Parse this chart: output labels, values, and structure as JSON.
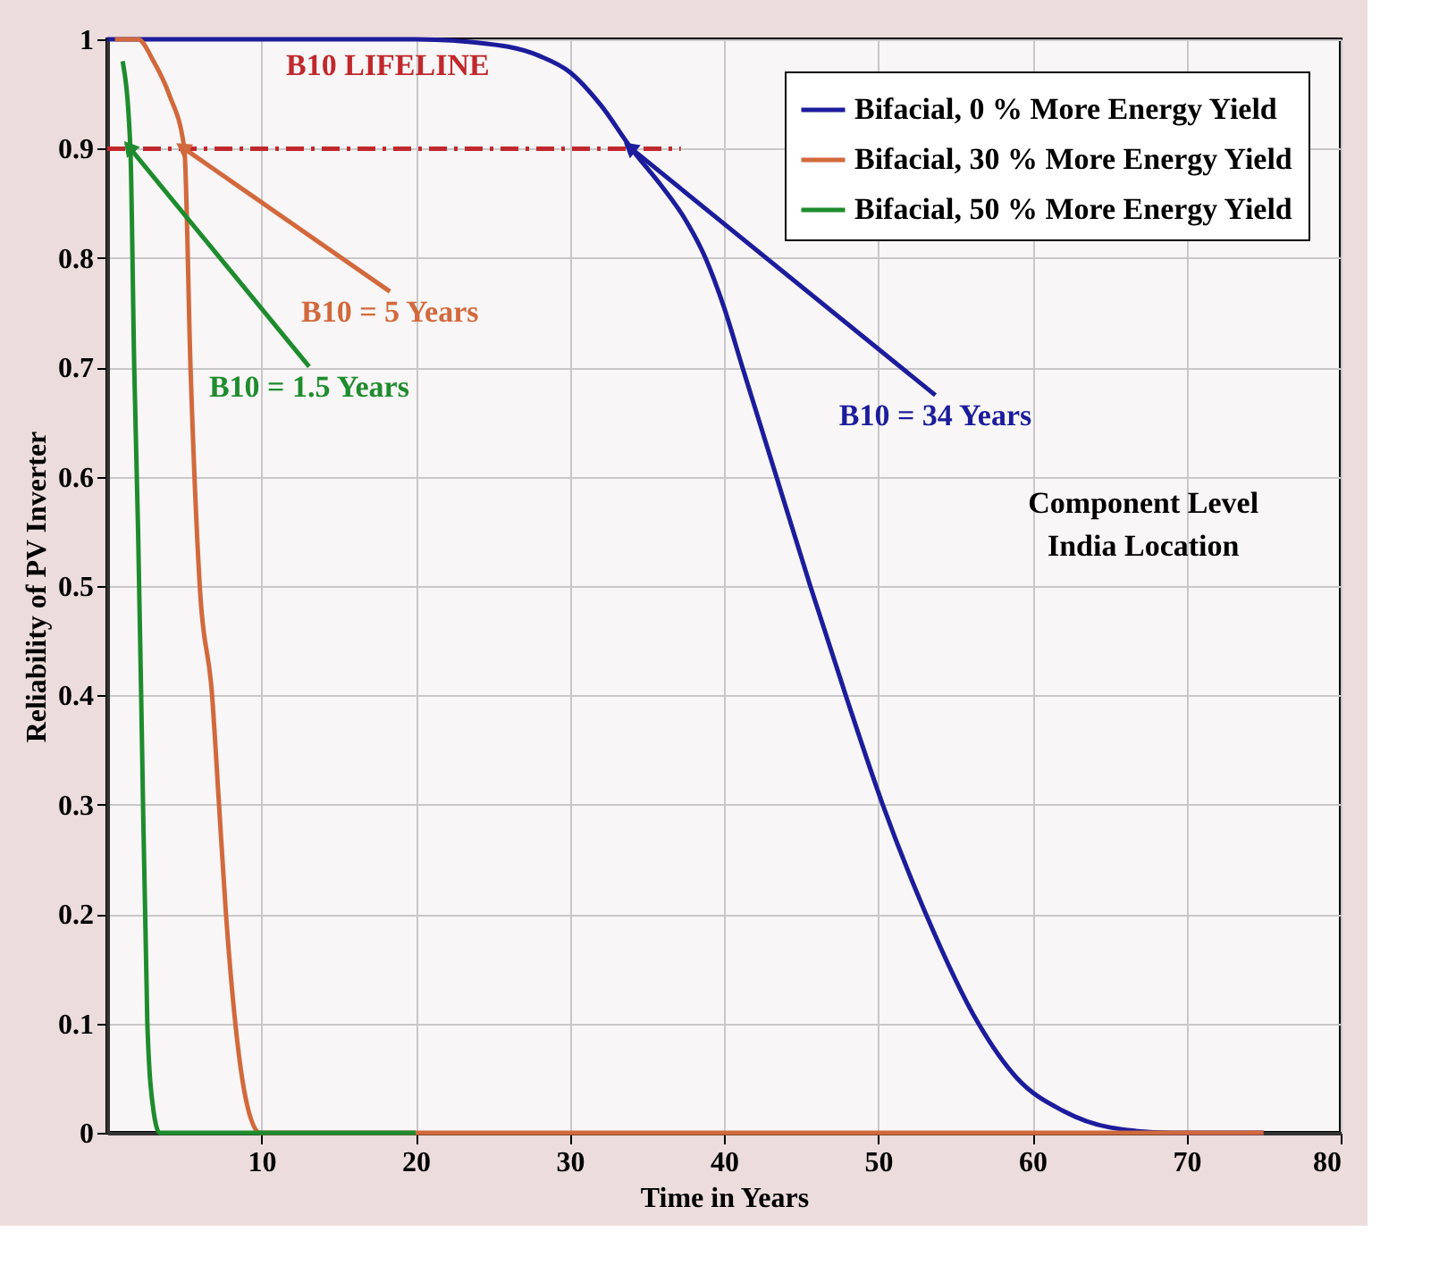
{
  "chart_data": {
    "type": "line",
    "xlabel": "Time in Years",
    "ylabel": "Reliability of PV Inverter",
    "xlim": [
      0,
      80
    ],
    "xticks": [
      10,
      20,
      30,
      40,
      50,
      60,
      70,
      80
    ],
    "ylim": [
      0,
      1
    ],
    "yticks": [
      0,
      0.1,
      0.2,
      0.3,
      0.4,
      0.5,
      0.6,
      0.7,
      0.8,
      0.9,
      1
    ],
    "grid": true,
    "legend": "top right",
    "line_style": "solid",
    "marker": "none",
    "series": [
      {
        "name": "Bifacial, 0 % More Energy Yield",
        "color": "#1c1c9c",
        "x": [
          0,
          10,
          20,
          24,
          28,
          30,
          32,
          34,
          36,
          37.5,
          38.8,
          40,
          41.2,
          43.4,
          45.6,
          47.9,
          50.3,
          53.1,
          56.5,
          59,
          62,
          65,
          69,
          75
        ],
        "values": [
          1,
          1,
          1,
          0.997,
          0.985,
          0.97,
          0.94,
          0.9,
          0.865,
          0.835,
          0.8,
          0.755,
          0.7,
          0.6,
          0.5,
          0.4,
          0.3,
          0.2,
          0.1,
          0.05,
          0.02,
          0.005,
          0,
          0
        ]
      },
      {
        "name": "Bifacial, 30 % More Energy Yield",
        "color": "#d2693c",
        "x": [
          0.5,
          2,
          3,
          4,
          5,
          5.4,
          6,
          6.8,
          7.25,
          7.7,
          8.1,
          9,
          9.9,
          20,
          75
        ],
        "values": [
          1,
          1,
          0.98,
          0.95,
          0.9,
          0.7,
          0.5,
          0.4,
          0.3,
          0.2,
          0.13,
          0.03,
          0,
          0,
          0
        ]
      },
      {
        "name": "Bifacial, 50 % More Energy Yield",
        "color": "#1e8c2e",
        "x": [
          1,
          1.5,
          1.75,
          2,
          2.2,
          2.6,
          3,
          3.4,
          10,
          20
        ],
        "values": [
          0.98,
          0.9,
          0.7,
          0.55,
          0.4,
          0.1,
          0.02,
          0,
          0,
          0
        ]
      }
    ],
    "ref_lines": [
      {
        "axis": "y",
        "value": 0.9,
        "label": "B10 LIFELINE",
        "color": "#c0282d",
        "line_style": "dashdot"
      }
    ],
    "annotations": [
      {
        "text": "B10 = 34 Years",
        "x": 34,
        "y": 0.9
      },
      {
        "text": "B10 = 5 Years",
        "x": 5,
        "y": 0.9
      },
      {
        "text": "B10 = 1.5 Years",
        "x": 1.5,
        "y": 0.9
      },
      "Component Level",
      "India Location"
    ]
  }
}
